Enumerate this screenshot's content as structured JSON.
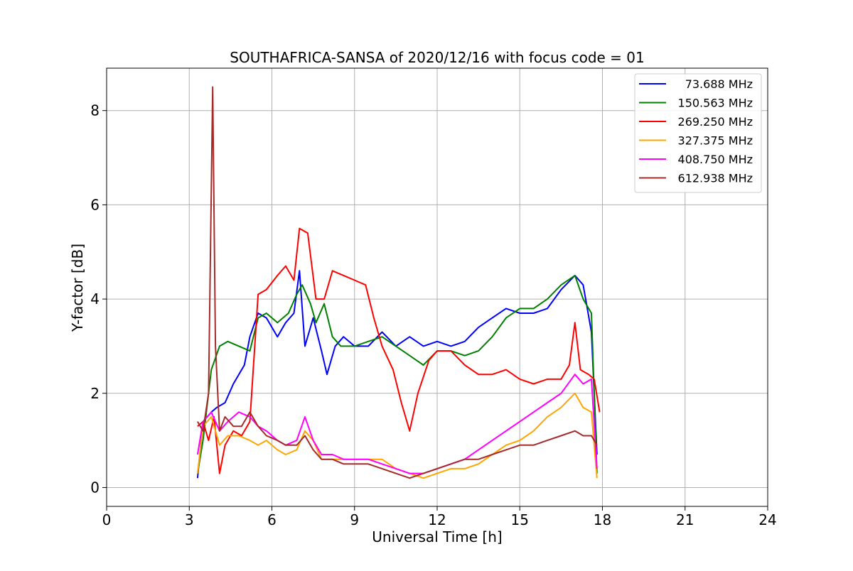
{
  "chart_data": {
    "type": "line",
    "title": "SOUTHAFRICA-SANSA of 2020/12/16 with focus code = 01",
    "xlabel": "Universal Time [h]",
    "ylabel": "Y-factor [dB]",
    "xlim": [
      0,
      24
    ],
    "ylim": [
      -0.4,
      8.9
    ],
    "xticks": [
      0,
      3,
      6,
      9,
      12,
      15,
      18,
      21,
      24
    ],
    "yticks": [
      0,
      2,
      4,
      6,
      8
    ],
    "grid": true,
    "legend_position": "top-right",
    "series": [
      {
        "name": "73.688 MHz",
        "color": "#0000ff",
        "points": [
          [
            3.3,
            0.2
          ],
          [
            3.5,
            1.4
          ],
          [
            3.8,
            1.6
          ],
          [
            4.0,
            1.7
          ],
          [
            4.3,
            1.8
          ],
          [
            4.6,
            2.2
          ],
          [
            5.0,
            2.6
          ],
          [
            5.2,
            3.2
          ],
          [
            5.5,
            3.7
          ],
          [
            5.8,
            3.6
          ],
          [
            6.2,
            3.2
          ],
          [
            6.5,
            3.5
          ],
          [
            6.8,
            3.7
          ],
          [
            7.0,
            4.6
          ],
          [
            7.2,
            3.0
          ],
          [
            7.5,
            3.6
          ],
          [
            7.8,
            2.9
          ],
          [
            8.0,
            2.4
          ],
          [
            8.3,
            3.0
          ],
          [
            8.6,
            3.2
          ],
          [
            9.0,
            3.0
          ],
          [
            9.5,
            3.0
          ],
          [
            10.0,
            3.3
          ],
          [
            10.5,
            3.0
          ],
          [
            11.0,
            3.2
          ],
          [
            11.5,
            3.0
          ],
          [
            12.0,
            3.1
          ],
          [
            12.5,
            3.0
          ],
          [
            13.0,
            3.1
          ],
          [
            13.5,
            3.4
          ],
          [
            14.0,
            3.6
          ],
          [
            14.5,
            3.8
          ],
          [
            15.0,
            3.7
          ],
          [
            15.5,
            3.7
          ],
          [
            16.0,
            3.8
          ],
          [
            16.5,
            4.2
          ],
          [
            17.0,
            4.5
          ],
          [
            17.3,
            4.3
          ],
          [
            17.6,
            3.3
          ],
          [
            17.8,
            0.7
          ]
        ]
      },
      {
        "name": "150.563 MHz",
        "color": "#008000",
        "points": [
          [
            3.3,
            0.3
          ],
          [
            3.5,
            1.0
          ],
          [
            3.8,
            2.5
          ],
          [
            4.1,
            3.0
          ],
          [
            4.4,
            3.1
          ],
          [
            4.8,
            3.0
          ],
          [
            5.2,
            2.9
          ],
          [
            5.5,
            3.6
          ],
          [
            5.8,
            3.7
          ],
          [
            6.2,
            3.5
          ],
          [
            6.6,
            3.7
          ],
          [
            6.9,
            4.1
          ],
          [
            7.1,
            4.3
          ],
          [
            7.4,
            3.9
          ],
          [
            7.6,
            3.5
          ],
          [
            7.9,
            3.9
          ],
          [
            8.2,
            3.2
          ],
          [
            8.5,
            3.0
          ],
          [
            9.0,
            3.0
          ],
          [
            9.5,
            3.1
          ],
          [
            10.0,
            3.2
          ],
          [
            10.5,
            3.0
          ],
          [
            11.0,
            2.8
          ],
          [
            11.5,
            2.6
          ],
          [
            12.0,
            2.9
          ],
          [
            12.5,
            2.9
          ],
          [
            13.0,
            2.8
          ],
          [
            13.5,
            2.9
          ],
          [
            14.0,
            3.2
          ],
          [
            14.5,
            3.6
          ],
          [
            15.0,
            3.8
          ],
          [
            15.5,
            3.8
          ],
          [
            16.0,
            4.0
          ],
          [
            16.5,
            4.3
          ],
          [
            17.0,
            4.5
          ],
          [
            17.3,
            4.0
          ],
          [
            17.6,
            3.7
          ],
          [
            17.8,
            0.3
          ]
        ]
      },
      {
        "name": "269.250 MHz",
        "color": "#ff0000",
        "points": [
          [
            3.3,
            1.3
          ],
          [
            3.5,
            1.4
          ],
          [
            3.7,
            1.0
          ],
          [
            3.9,
            1.5
          ],
          [
            4.1,
            0.3
          ],
          [
            4.3,
            0.9
          ],
          [
            4.6,
            1.2
          ],
          [
            4.9,
            1.1
          ],
          [
            5.2,
            1.4
          ],
          [
            5.5,
            4.1
          ],
          [
            5.8,
            4.2
          ],
          [
            6.2,
            4.5
          ],
          [
            6.5,
            4.7
          ],
          [
            6.8,
            4.4
          ],
          [
            7.0,
            5.5
          ],
          [
            7.3,
            5.4
          ],
          [
            7.6,
            4.0
          ],
          [
            7.9,
            4.0
          ],
          [
            8.2,
            4.6
          ],
          [
            8.6,
            4.5
          ],
          [
            9.0,
            4.4
          ],
          [
            9.4,
            4.3
          ],
          [
            9.7,
            3.6
          ],
          [
            10.0,
            3.0
          ],
          [
            10.4,
            2.5
          ],
          [
            10.7,
            1.8
          ],
          [
            11.0,
            1.2
          ],
          [
            11.3,
            2.0
          ],
          [
            11.7,
            2.7
          ],
          [
            12.0,
            2.9
          ],
          [
            12.5,
            2.9
          ],
          [
            13.0,
            2.6
          ],
          [
            13.5,
            2.4
          ],
          [
            14.0,
            2.4
          ],
          [
            14.5,
            2.5
          ],
          [
            15.0,
            2.3
          ],
          [
            15.5,
            2.2
          ],
          [
            16.0,
            2.3
          ],
          [
            16.5,
            2.3
          ],
          [
            16.8,
            2.6
          ],
          [
            17.0,
            3.5
          ],
          [
            17.2,
            2.5
          ],
          [
            17.5,
            2.4
          ],
          [
            17.7,
            2.3
          ],
          [
            17.9,
            1.6
          ]
        ]
      },
      {
        "name": "327.375 MHz",
        "color": "#ffa500",
        "points": [
          [
            3.3,
            0.3
          ],
          [
            3.5,
            1.3
          ],
          [
            3.8,
            1.5
          ],
          [
            4.1,
            0.9
          ],
          [
            4.4,
            1.1
          ],
          [
            4.8,
            1.1
          ],
          [
            5.2,
            1.0
          ],
          [
            5.5,
            0.9
          ],
          [
            5.8,
            1.0
          ],
          [
            6.2,
            0.8
          ],
          [
            6.5,
            0.7
          ],
          [
            6.9,
            0.8
          ],
          [
            7.2,
            1.2
          ],
          [
            7.5,
            1.0
          ],
          [
            7.8,
            0.6
          ],
          [
            8.2,
            0.6
          ],
          [
            8.6,
            0.6
          ],
          [
            9.0,
            0.6
          ],
          [
            9.5,
            0.6
          ],
          [
            10.0,
            0.6
          ],
          [
            10.5,
            0.4
          ],
          [
            11.0,
            0.3
          ],
          [
            11.5,
            0.2
          ],
          [
            12.0,
            0.3
          ],
          [
            12.5,
            0.4
          ],
          [
            13.0,
            0.4
          ],
          [
            13.5,
            0.5
          ],
          [
            14.0,
            0.7
          ],
          [
            14.5,
            0.9
          ],
          [
            15.0,
            1.0
          ],
          [
            15.5,
            1.2
          ],
          [
            16.0,
            1.5
          ],
          [
            16.5,
            1.7
          ],
          [
            17.0,
            2.0
          ],
          [
            17.3,
            1.7
          ],
          [
            17.6,
            1.6
          ],
          [
            17.8,
            0.2
          ]
        ]
      },
      {
        "name": "408.750 MHz",
        "color": "#ff00ff",
        "points": [
          [
            3.3,
            0.7
          ],
          [
            3.5,
            1.4
          ],
          [
            3.8,
            1.6
          ],
          [
            4.1,
            1.2
          ],
          [
            4.4,
            1.4
          ],
          [
            4.8,
            1.6
          ],
          [
            5.2,
            1.5
          ],
          [
            5.5,
            1.3
          ],
          [
            5.8,
            1.2
          ],
          [
            6.2,
            1.0
          ],
          [
            6.5,
            0.9
          ],
          [
            6.9,
            1.0
          ],
          [
            7.2,
            1.5
          ],
          [
            7.5,
            1.0
          ],
          [
            7.8,
            0.7
          ],
          [
            8.2,
            0.7
          ],
          [
            8.6,
            0.6
          ],
          [
            9.0,
            0.6
          ],
          [
            9.5,
            0.6
          ],
          [
            10.0,
            0.5
          ],
          [
            10.5,
            0.4
          ],
          [
            11.0,
            0.3
          ],
          [
            11.5,
            0.3
          ],
          [
            12.0,
            0.4
          ],
          [
            12.5,
            0.5
          ],
          [
            13.0,
            0.6
          ],
          [
            13.5,
            0.8
          ],
          [
            14.0,
            1.0
          ],
          [
            14.5,
            1.2
          ],
          [
            15.0,
            1.4
          ],
          [
            15.5,
            1.6
          ],
          [
            16.0,
            1.8
          ],
          [
            16.5,
            2.0
          ],
          [
            17.0,
            2.4
          ],
          [
            17.3,
            2.2
          ],
          [
            17.6,
            2.3
          ],
          [
            17.8,
            0.4
          ]
        ]
      },
      {
        "name": "612.938 MHz",
        "color": "#a52a2a",
        "points": [
          [
            3.3,
            1.4
          ],
          [
            3.5,
            1.2
          ],
          [
            3.7,
            2.0
          ],
          [
            3.85,
            8.5
          ],
          [
            3.95,
            3.0
          ],
          [
            4.1,
            1.2
          ],
          [
            4.3,
            1.5
          ],
          [
            4.6,
            1.3
          ],
          [
            4.9,
            1.3
          ],
          [
            5.2,
            1.6
          ],
          [
            5.5,
            1.3
          ],
          [
            5.8,
            1.1
          ],
          [
            6.2,
            1.0
          ],
          [
            6.5,
            0.9
          ],
          [
            6.9,
            0.9
          ],
          [
            7.2,
            1.1
          ],
          [
            7.5,
            0.8
          ],
          [
            7.8,
            0.6
          ],
          [
            8.2,
            0.6
          ],
          [
            8.6,
            0.5
          ],
          [
            9.0,
            0.5
          ],
          [
            9.5,
            0.5
          ],
          [
            10.0,
            0.4
          ],
          [
            10.5,
            0.3
          ],
          [
            11.0,
            0.2
          ],
          [
            11.5,
            0.3
          ],
          [
            12.0,
            0.4
          ],
          [
            12.5,
            0.5
          ],
          [
            13.0,
            0.6
          ],
          [
            13.5,
            0.6
          ],
          [
            14.0,
            0.7
          ],
          [
            14.5,
            0.8
          ],
          [
            15.0,
            0.9
          ],
          [
            15.5,
            0.9
          ],
          [
            16.0,
            1.0
          ],
          [
            16.5,
            1.1
          ],
          [
            17.0,
            1.2
          ],
          [
            17.3,
            1.1
          ],
          [
            17.6,
            1.1
          ],
          [
            17.8,
            0.9
          ]
        ]
      }
    ]
  }
}
